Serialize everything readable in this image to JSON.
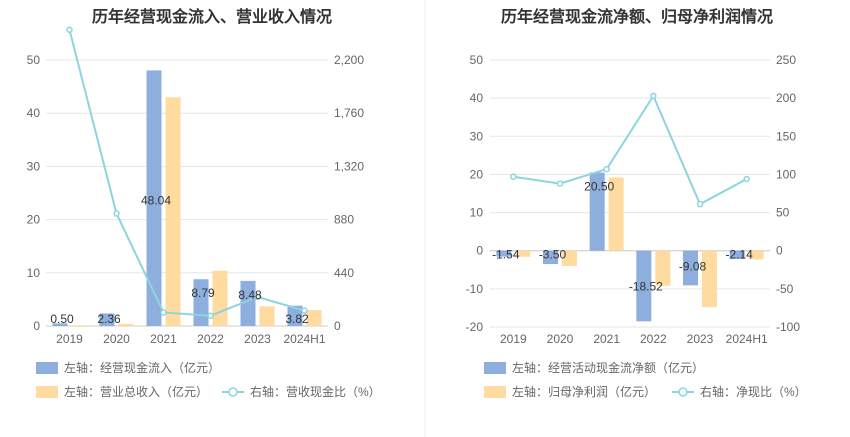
{
  "colors": {
    "bar_blue": "#8eaedd",
    "bar_orange": "#ffdba0",
    "line": "#8dd5de",
    "grid": "#e6e6e6",
    "divider": "#eeeeee"
  },
  "chart_data": [
    {
      "type": "bar",
      "title": "历年经营现金流入、营业收入情况",
      "categories": [
        "2019",
        "2020",
        "2021",
        "2022",
        "2023",
        "2024H1"
      ],
      "left_axis": {
        "ticks": [
          "0",
          "10",
          "20",
          "30",
          "40",
          "50"
        ],
        "range": [
          0,
          50
        ]
      },
      "right_axis": {
        "ticks": [
          "0",
          "440",
          "880",
          "1,320",
          "1,760",
          "2,200"
        ],
        "range": [
          0,
          2200
        ]
      },
      "series": [
        {
          "name": "左轴：经营现金流入（亿元）",
          "kind": "bar",
          "axis": "left",
          "values": [
            0.5,
            2.36,
            48.04,
            8.79,
            8.48,
            3.82
          ]
        },
        {
          "name": "左轴：营业总收入（亿元）",
          "kind": "bar",
          "axis": "left",
          "values": [
            0.02,
            0.4,
            43.0,
            10.4,
            3.7,
            3.0
          ]
        },
        {
          "name": "右轴：营收现金比（%）",
          "kind": "line",
          "axis": "right",
          "values": [
            2450,
            930,
            112,
            85,
            240,
            128
          ]
        }
      ],
      "data_labels": [
        "0.50",
        "2.36",
        "48.04",
        "8.79",
        "8.48",
        "3.82"
      ],
      "legend": [
        {
          "label": "左轴：经营现金流入（亿元）",
          "kind": "bar",
          "series": 0
        },
        {
          "label": "左轴：营业总收入（亿元）",
          "kind": "bar",
          "series": 1
        },
        {
          "label": "右轴：营收现金比（%）",
          "kind": "line",
          "series": 2
        }
      ]
    },
    {
      "type": "bar",
      "title": "历年经营现金流净额、归母净利润情况",
      "categories": [
        "2019",
        "2020",
        "2021",
        "2022",
        "2023",
        "2024H1"
      ],
      "left_axis": {
        "ticks": [
          "-20",
          "-10",
          "0",
          "10",
          "20",
          "30",
          "40",
          "50"
        ],
        "range": [
          -20,
          50
        ]
      },
      "right_axis": {
        "ticks": [
          "-100",
          "-50",
          "0",
          "50",
          "100",
          "150",
          "200",
          "250"
        ],
        "range": [
          -100,
          250
        ]
      },
      "series": [
        {
          "name": "左轴：经营活动现金流净额（亿元）",
          "kind": "bar",
          "axis": "left",
          "values": [
            -1.54,
            -3.5,
            20.5,
            -18.52,
            -9.08,
            -2.14
          ]
        },
        {
          "name": "左轴：归母净利润（亿元）",
          "kind": "bar",
          "axis": "left",
          "values": [
            -1.6,
            -4.0,
            19.2,
            -9.2,
            -14.8,
            -2.3
          ]
        },
        {
          "name": "右轴：净现比（%）",
          "kind": "line",
          "axis": "right",
          "values": [
            97,
            88,
            107,
            203,
            61,
            94
          ]
        }
      ],
      "data_labels": [
        "-1.54",
        "-3.50",
        "20.50",
        "-18.52",
        "-9.08",
        "-2.14"
      ],
      "legend": [
        {
          "label": "左轴：经营活动现金流净额（亿元）",
          "kind": "bar",
          "series": 0
        },
        {
          "label": "左轴：归母净利润（亿元）",
          "kind": "bar",
          "series": 1
        },
        {
          "label": "右轴：净现比（%）",
          "kind": "line",
          "series": 2
        }
      ]
    }
  ]
}
